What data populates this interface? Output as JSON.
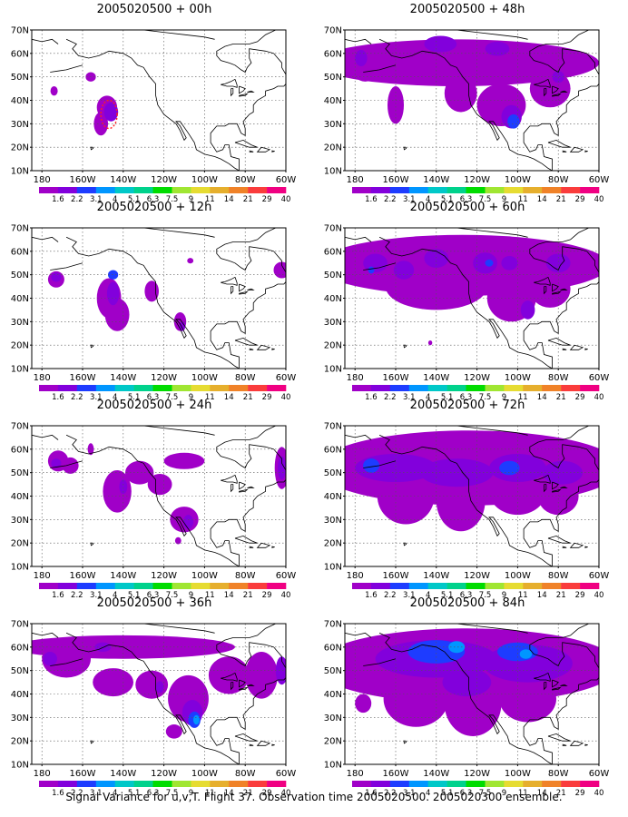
{
  "panels": [
    {
      "id": "p00",
      "title": "2005020500 + 00h",
      "blobs": [
        {
          "lon": -174,
          "lat": 44,
          "rx": 1.8,
          "ry": 2.0,
          "lvl": 3
        },
        {
          "lon": -156,
          "lat": 50,
          "rx": 2.5,
          "ry": 2.0,
          "lvl": 3
        },
        {
          "lon": -151,
          "lat": 30,
          "rx": 3.5,
          "ry": 5.0,
          "lvl": 3
        },
        {
          "lon": -148,
          "lat": 37,
          "rx": 5.0,
          "ry": 5.0,
          "lvl": 3
        },
        {
          "lon": -146,
          "lat": 35,
          "rx": 3.5,
          "ry": 4.0,
          "lvl": 4
        }
      ],
      "dashed": {
        "lon": -147,
        "lat": 34
      }
    },
    {
      "id": "p12",
      "title": "2005020500 + 12h",
      "blobs": [
        {
          "lon": -173,
          "lat": 48,
          "rx": 4.0,
          "ry": 3.5,
          "lvl": 3
        },
        {
          "lon": -173,
          "lat": 49,
          "rx": 2.5,
          "ry": 2.0,
          "lvl": 4
        },
        {
          "lon": -147,
          "lat": 40,
          "rx": 6.0,
          "ry": 8.5,
          "lvl": 3
        },
        {
          "lon": -143,
          "lat": 33,
          "rx": 6.0,
          "ry": 7.0,
          "lvl": 3
        },
        {
          "lon": -145,
          "lat": 42,
          "rx": 3.0,
          "ry": 5.0,
          "lvl": 4
        },
        {
          "lon": -145,
          "lat": 50,
          "rx": 2.5,
          "ry": 2.0,
          "lvl": 5
        },
        {
          "lon": -126,
          "lat": 43,
          "rx": 3.5,
          "ry": 4.5,
          "lvl": 3
        },
        {
          "lon": -112,
          "lat": 30,
          "rx": 3.0,
          "ry": 4.0,
          "lvl": 3
        },
        {
          "lon": -111,
          "lat": 28,
          "rx": 1.5,
          "ry": 2.0,
          "lvl": 4
        },
        {
          "lon": -107,
          "lat": 56,
          "rx": 1.5,
          "ry": 1.2,
          "lvl": 3
        },
        {
          "lon": -62,
          "lat": 52,
          "rx": 4.0,
          "ry": 3.5,
          "lvl": 3
        }
      ]
    },
    {
      "id": "p24",
      "title": "2005020500 + 24h",
      "blobs": [
        {
          "lon": -172,
          "lat": 55,
          "rx": 5.0,
          "ry": 4.5,
          "lvl": 3
        },
        {
          "lon": -166,
          "lat": 53,
          "rx": 4.0,
          "ry": 3.5,
          "lvl": 3
        },
        {
          "lon": -173,
          "lat": 54,
          "rx": 2.5,
          "ry": 2.0,
          "lvl": 4
        },
        {
          "lon": -156,
          "lat": 60,
          "rx": 1.5,
          "ry": 2.5,
          "lvl": 3
        },
        {
          "lon": -143,
          "lat": 42,
          "rx": 7.0,
          "ry": 9.0,
          "lvl": 3
        },
        {
          "lon": -132,
          "lat": 50,
          "rx": 7.0,
          "ry": 5.0,
          "lvl": 3
        },
        {
          "lon": -122,
          "lat": 45,
          "rx": 6.0,
          "ry": 4.5,
          "lvl": 3
        },
        {
          "lon": -110,
          "lat": 55,
          "rx": 10.0,
          "ry": 3.5,
          "lvl": 3
        },
        {
          "lon": -110,
          "lat": 30,
          "rx": 7.0,
          "ry": 5.5,
          "lvl": 3
        },
        {
          "lon": -108,
          "lat": 29,
          "rx": 2.5,
          "ry": 3.0,
          "lvl": 4
        },
        {
          "lon": -113,
          "lat": 21,
          "rx": 1.5,
          "ry": 1.5,
          "lvl": 3
        },
        {
          "lon": -140,
          "lat": 44,
          "rx": 2.0,
          "ry": 3.0,
          "lvl": 4
        },
        {
          "lon": -62,
          "lat": 52,
          "rx": 3.5,
          "ry": 9.0,
          "lvl": 3
        },
        {
          "lon": -62,
          "lat": 52,
          "rx": 2.0,
          "ry": 5.0,
          "lvl": 4
        }
      ]
    },
    {
      "id": "p36",
      "title": "2005020500 + 36h",
      "blobs": [
        {
          "lon": -140,
          "lat": 60,
          "rx": 55.0,
          "ry": 5.0,
          "lvl": 3
        },
        {
          "lon": -168,
          "lat": 55,
          "rx": 12.0,
          "ry": 8.0,
          "lvl": 3
        },
        {
          "lon": -176,
          "lat": 55,
          "rx": 3.5,
          "ry": 3.0,
          "lvl": 4
        },
        {
          "lon": -145,
          "lat": 45,
          "rx": 10.0,
          "ry": 6.0,
          "lvl": 3
        },
        {
          "lon": -126,
          "lat": 44,
          "rx": 8.0,
          "ry": 6.0,
          "lvl": 3
        },
        {
          "lon": -108,
          "lat": 38,
          "rx": 10.0,
          "ry": 10.0,
          "lvl": 3
        },
        {
          "lon": -106,
          "lat": 32,
          "rx": 5.0,
          "ry": 5.5,
          "lvl": 4
        },
        {
          "lon": -105,
          "lat": 29,
          "rx": 3.0,
          "ry": 3.5,
          "lvl": 5
        },
        {
          "lon": -104,
          "lat": 29,
          "rx": 1.5,
          "ry": 2.0,
          "lvl": 6
        },
        {
          "lon": -115,
          "lat": 24,
          "rx": 4.0,
          "ry": 3.0,
          "lvl": 3
        },
        {
          "lon": -88,
          "lat": 48,
          "rx": 10.0,
          "ry": 8.0,
          "lvl": 3
        },
        {
          "lon": -72,
          "lat": 48,
          "rx": 8.0,
          "ry": 10.0,
          "lvl": 3
        },
        {
          "lon": -150,
          "lat": 60,
          "rx": 4.0,
          "ry": 2.0,
          "lvl": 4
        },
        {
          "lon": -122,
          "lat": 43,
          "rx": 2.0,
          "ry": 2.5,
          "lvl": 4
        },
        {
          "lon": -62,
          "lat": 50,
          "rx": 3.0,
          "ry": 6.0,
          "lvl": 4
        }
      ]
    },
    {
      "id": "p48",
      "title": "2005020500 + 48h",
      "blobs": [
        {
          "lon": -130,
          "lat": 56,
          "rx": 70.0,
          "ry": 10.0,
          "lvl": 3
        },
        {
          "lon": -175,
          "lat": 55,
          "rx": 7.0,
          "ry": 7.0,
          "lvl": 3
        },
        {
          "lon": -177,
          "lat": 58,
          "rx": 3.0,
          "ry": 3.5,
          "lvl": 4
        },
        {
          "lon": -160,
          "lat": 38,
          "rx": 4.0,
          "ry": 8.0,
          "lvl": 3
        },
        {
          "lon": -128,
          "lat": 43,
          "rx": 8.0,
          "ry": 8.0,
          "lvl": 3
        },
        {
          "lon": -108,
          "lat": 38,
          "rx": 12.0,
          "ry": 9.0,
          "lvl": 3
        },
        {
          "lon": -103,
          "lat": 33,
          "rx": 5.0,
          "ry": 5.0,
          "lvl": 4
        },
        {
          "lon": -102,
          "lat": 31,
          "rx": 3.0,
          "ry": 3.0,
          "lvl": 5
        },
        {
          "lon": -84,
          "lat": 45,
          "rx": 10.0,
          "ry": 8.0,
          "lvl": 3
        },
        {
          "lon": -138,
          "lat": 64,
          "rx": 8.0,
          "ry": 3.5,
          "lvl": 4
        },
        {
          "lon": -110,
          "lat": 62,
          "rx": 6.0,
          "ry": 3.0,
          "lvl": 4
        },
        {
          "lon": -80,
          "lat": 50,
          "rx": 3.0,
          "ry": 2.5,
          "lvl": 4
        }
      ]
    },
    {
      "id": "p60",
      "title": "2005020500 + 60h",
      "blobs": [
        {
          "lon": -127,
          "lat": 54,
          "rx": 72.0,
          "ry": 13.0,
          "lvl": 3
        },
        {
          "lon": -140,
          "lat": 45,
          "rx": 25.0,
          "ry": 10.0,
          "lvl": 3
        },
        {
          "lon": -103,
          "lat": 40,
          "rx": 12.0,
          "ry": 10.0,
          "lvl": 3
        },
        {
          "lon": -84,
          "lat": 44,
          "rx": 10.0,
          "ry": 8.0,
          "lvl": 3
        },
        {
          "lon": -170,
          "lat": 55,
          "rx": 6.0,
          "ry": 4.0,
          "lvl": 4
        },
        {
          "lon": -156,
          "lat": 52,
          "rx": 5.0,
          "ry": 4.0,
          "lvl": 4
        },
        {
          "lon": -140,
          "lat": 57,
          "rx": 6.0,
          "ry": 4.0,
          "lvl": 4
        },
        {
          "lon": -116,
          "lat": 55,
          "rx": 6.0,
          "ry": 4.5,
          "lvl": 4
        },
        {
          "lon": -104,
          "lat": 55,
          "rx": 4.0,
          "ry": 3.0,
          "lvl": 4
        },
        {
          "lon": -80,
          "lat": 55,
          "rx": 6.0,
          "ry": 4.0,
          "lvl": 4
        },
        {
          "lon": -95,
          "lat": 35,
          "rx": 3.5,
          "ry": 4.0,
          "lvl": 4
        },
        {
          "lon": -114,
          "lat": 55,
          "rx": 2.0,
          "ry": 1.5,
          "lvl": 5
        },
        {
          "lon": -172,
          "lat": 52,
          "rx": 1.5,
          "ry": 1.5,
          "lvl": 5
        },
        {
          "lon": -143,
          "lat": 21,
          "rx": 1.0,
          "ry": 1.0,
          "lvl": 3
        }
      ]
    },
    {
      "id": "p72",
      "title": "2005020500 + 72h",
      "blobs": [
        {
          "lon": -124,
          "lat": 52,
          "rx": 75.0,
          "ry": 16.0,
          "lvl": 3
        },
        {
          "lon": -155,
          "lat": 40,
          "rx": 14.0,
          "ry": 12.0,
          "lvl": 3
        },
        {
          "lon": -128,
          "lat": 38,
          "rx": 12.0,
          "ry": 13.0,
          "lvl": 3
        },
        {
          "lon": -100,
          "lat": 42,
          "rx": 14.0,
          "ry": 10.0,
          "lvl": 3
        },
        {
          "lon": -80,
          "lat": 40,
          "rx": 10.0,
          "ry": 8.0,
          "lvl": 3
        },
        {
          "lon": -160,
          "lat": 52,
          "rx": 20.0,
          "ry": 6.0,
          "lvl": 4
        },
        {
          "lon": -130,
          "lat": 50,
          "rx": 18.0,
          "ry": 6.0,
          "lvl": 4
        },
        {
          "lon": -100,
          "lat": 52,
          "rx": 14.0,
          "ry": 6.0,
          "lvl": 4
        },
        {
          "lon": -78,
          "lat": 50,
          "rx": 10.0,
          "ry": 5.0,
          "lvl": 4
        },
        {
          "lon": -172,
          "lat": 53,
          "rx": 4.0,
          "ry": 3.0,
          "lvl": 5
        },
        {
          "lon": -104,
          "lat": 52,
          "rx": 5.0,
          "ry": 3.0,
          "lvl": 5
        }
      ]
    },
    {
      "id": "p84",
      "title": "2005020500 + 84h",
      "blobs": [
        {
          "lon": -125,
          "lat": 52,
          "rx": 75.0,
          "ry": 16.0,
          "lvl": 3
        },
        {
          "lon": -150,
          "lat": 38,
          "rx": 16.0,
          "ry": 12.0,
          "lvl": 3
        },
        {
          "lon": -122,
          "lat": 36,
          "rx": 14.0,
          "ry": 14.0,
          "lvl": 3
        },
        {
          "lon": -95,
          "lat": 38,
          "rx": 14.0,
          "ry": 10.0,
          "lvl": 3
        },
        {
          "lon": -176,
          "lat": 36,
          "rx": 4.0,
          "ry": 4.0,
          "lvl": 3
        },
        {
          "lon": -140,
          "lat": 55,
          "rx": 30.0,
          "ry": 8.0,
          "lvl": 4
        },
        {
          "lon": -95,
          "lat": 53,
          "rx": 22.0,
          "ry": 8.0,
          "lvl": 4
        },
        {
          "lon": -125,
          "lat": 45,
          "rx": 12.0,
          "ry": 6.0,
          "lvl": 4
        },
        {
          "lon": -140,
          "lat": 58,
          "rx": 14.0,
          "ry": 5.0,
          "lvl": 5
        },
        {
          "lon": -100,
          "lat": 58,
          "rx": 10.0,
          "ry": 4.0,
          "lvl": 5
        },
        {
          "lon": -130,
          "lat": 60,
          "rx": 4.0,
          "ry": 2.5,
          "lvl": 6
        },
        {
          "lon": -96,
          "lat": 57,
          "rx": 3.0,
          "ry": 2.0,
          "lvl": 6
        }
      ]
    }
  ],
  "axes": {
    "lon_range": [
      -185,
      -60
    ],
    "lat_range": [
      10,
      70
    ],
    "xticks": [
      {
        "lon": -180,
        "label": "180"
      },
      {
        "lon": -160,
        "label": "160W"
      },
      {
        "lon": -140,
        "label": "140W"
      },
      {
        "lon": -120,
        "label": "120W"
      },
      {
        "lon": -100,
        "label": "100W"
      },
      {
        "lon": -80,
        "label": "80W"
      },
      {
        "lon": -60,
        "label": "60W"
      }
    ],
    "yticks": [
      {
        "lat": 10,
        "label": "10N"
      },
      {
        "lat": 20,
        "label": "20N"
      },
      {
        "lat": 30,
        "label": "30N"
      },
      {
        "lat": 40,
        "label": "40N"
      },
      {
        "lat": 50,
        "label": "50N"
      },
      {
        "lat": 60,
        "label": "60N"
      },
      {
        "lat": 70,
        "label": "70N"
      }
    ]
  },
  "colorbar": {
    "labels": [
      "1.6",
      "2.2",
      "3.1",
      "4",
      "5.1",
      "6.3",
      "7.5",
      "9",
      "11",
      "14",
      "21",
      "29",
      "40"
    ],
    "colors": [
      "#a000c8",
      "#8200dc",
      "#1e3cff",
      "#0096ff",
      "#00c8c8",
      "#00d28c",
      "#00dc00",
      "#a0e632",
      "#e6dc32",
      "#e6af2d",
      "#f08228",
      "#fa3c3c",
      "#f00082"
    ]
  },
  "caption": "Signal Variance for u,v,T. Flight 37. Observation time 2005020500. 2005020300 ensemble."
}
